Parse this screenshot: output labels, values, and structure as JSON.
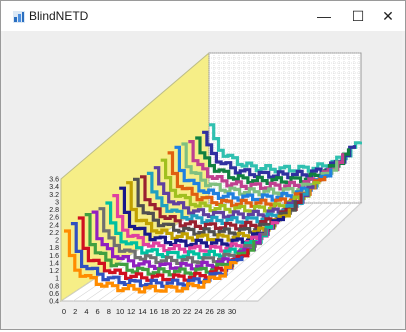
{
  "window": {
    "title": "BlindNETD",
    "controls": {
      "minimize": "—",
      "maximize": "☐",
      "close": "✕"
    }
  },
  "chart_data": {
    "type": "line",
    "projection": "3d",
    "title": "",
    "xlabel": "",
    "ylabel": "",
    "x_ticks": [
      "0",
      "2",
      "4",
      "6",
      "8",
      "10",
      "12",
      "14",
      "16",
      "18",
      "20",
      "22",
      "24",
      "26",
      "28",
      "30"
    ],
    "y_ticks": [
      "0.4",
      "0.6",
      "0.8",
      "1",
      "1.2",
      "1.4",
      "1.6",
      "1.8",
      "2",
      "2.2",
      "2.4",
      "2.6",
      "2.8",
      "3",
      "3.2",
      "3.4",
      "3.6"
    ],
    "xlim": [
      0,
      30
    ],
    "ylim": [
      0.4,
      3.6
    ],
    "grid": true,
    "back_wall_color": "#f6ee87",
    "floor_color": "#ffffff",
    "series_count": 22,
    "series_colors": [
      "#ff8c00",
      "#3050c0",
      "#d01020",
      "#40a040",
      "#9020c0",
      "#707070",
      "#00c0a0",
      "#e040a0",
      "#1a1a8a",
      "#c0a000",
      "#505050",
      "#9a2030",
      "#20a0c0",
      "#6040a0",
      "#a0c020",
      "#e06010",
      "#2080e0",
      "#80c080",
      "#c04090",
      "#108040",
      "#3030a0",
      "#30c0b0"
    ]
  }
}
